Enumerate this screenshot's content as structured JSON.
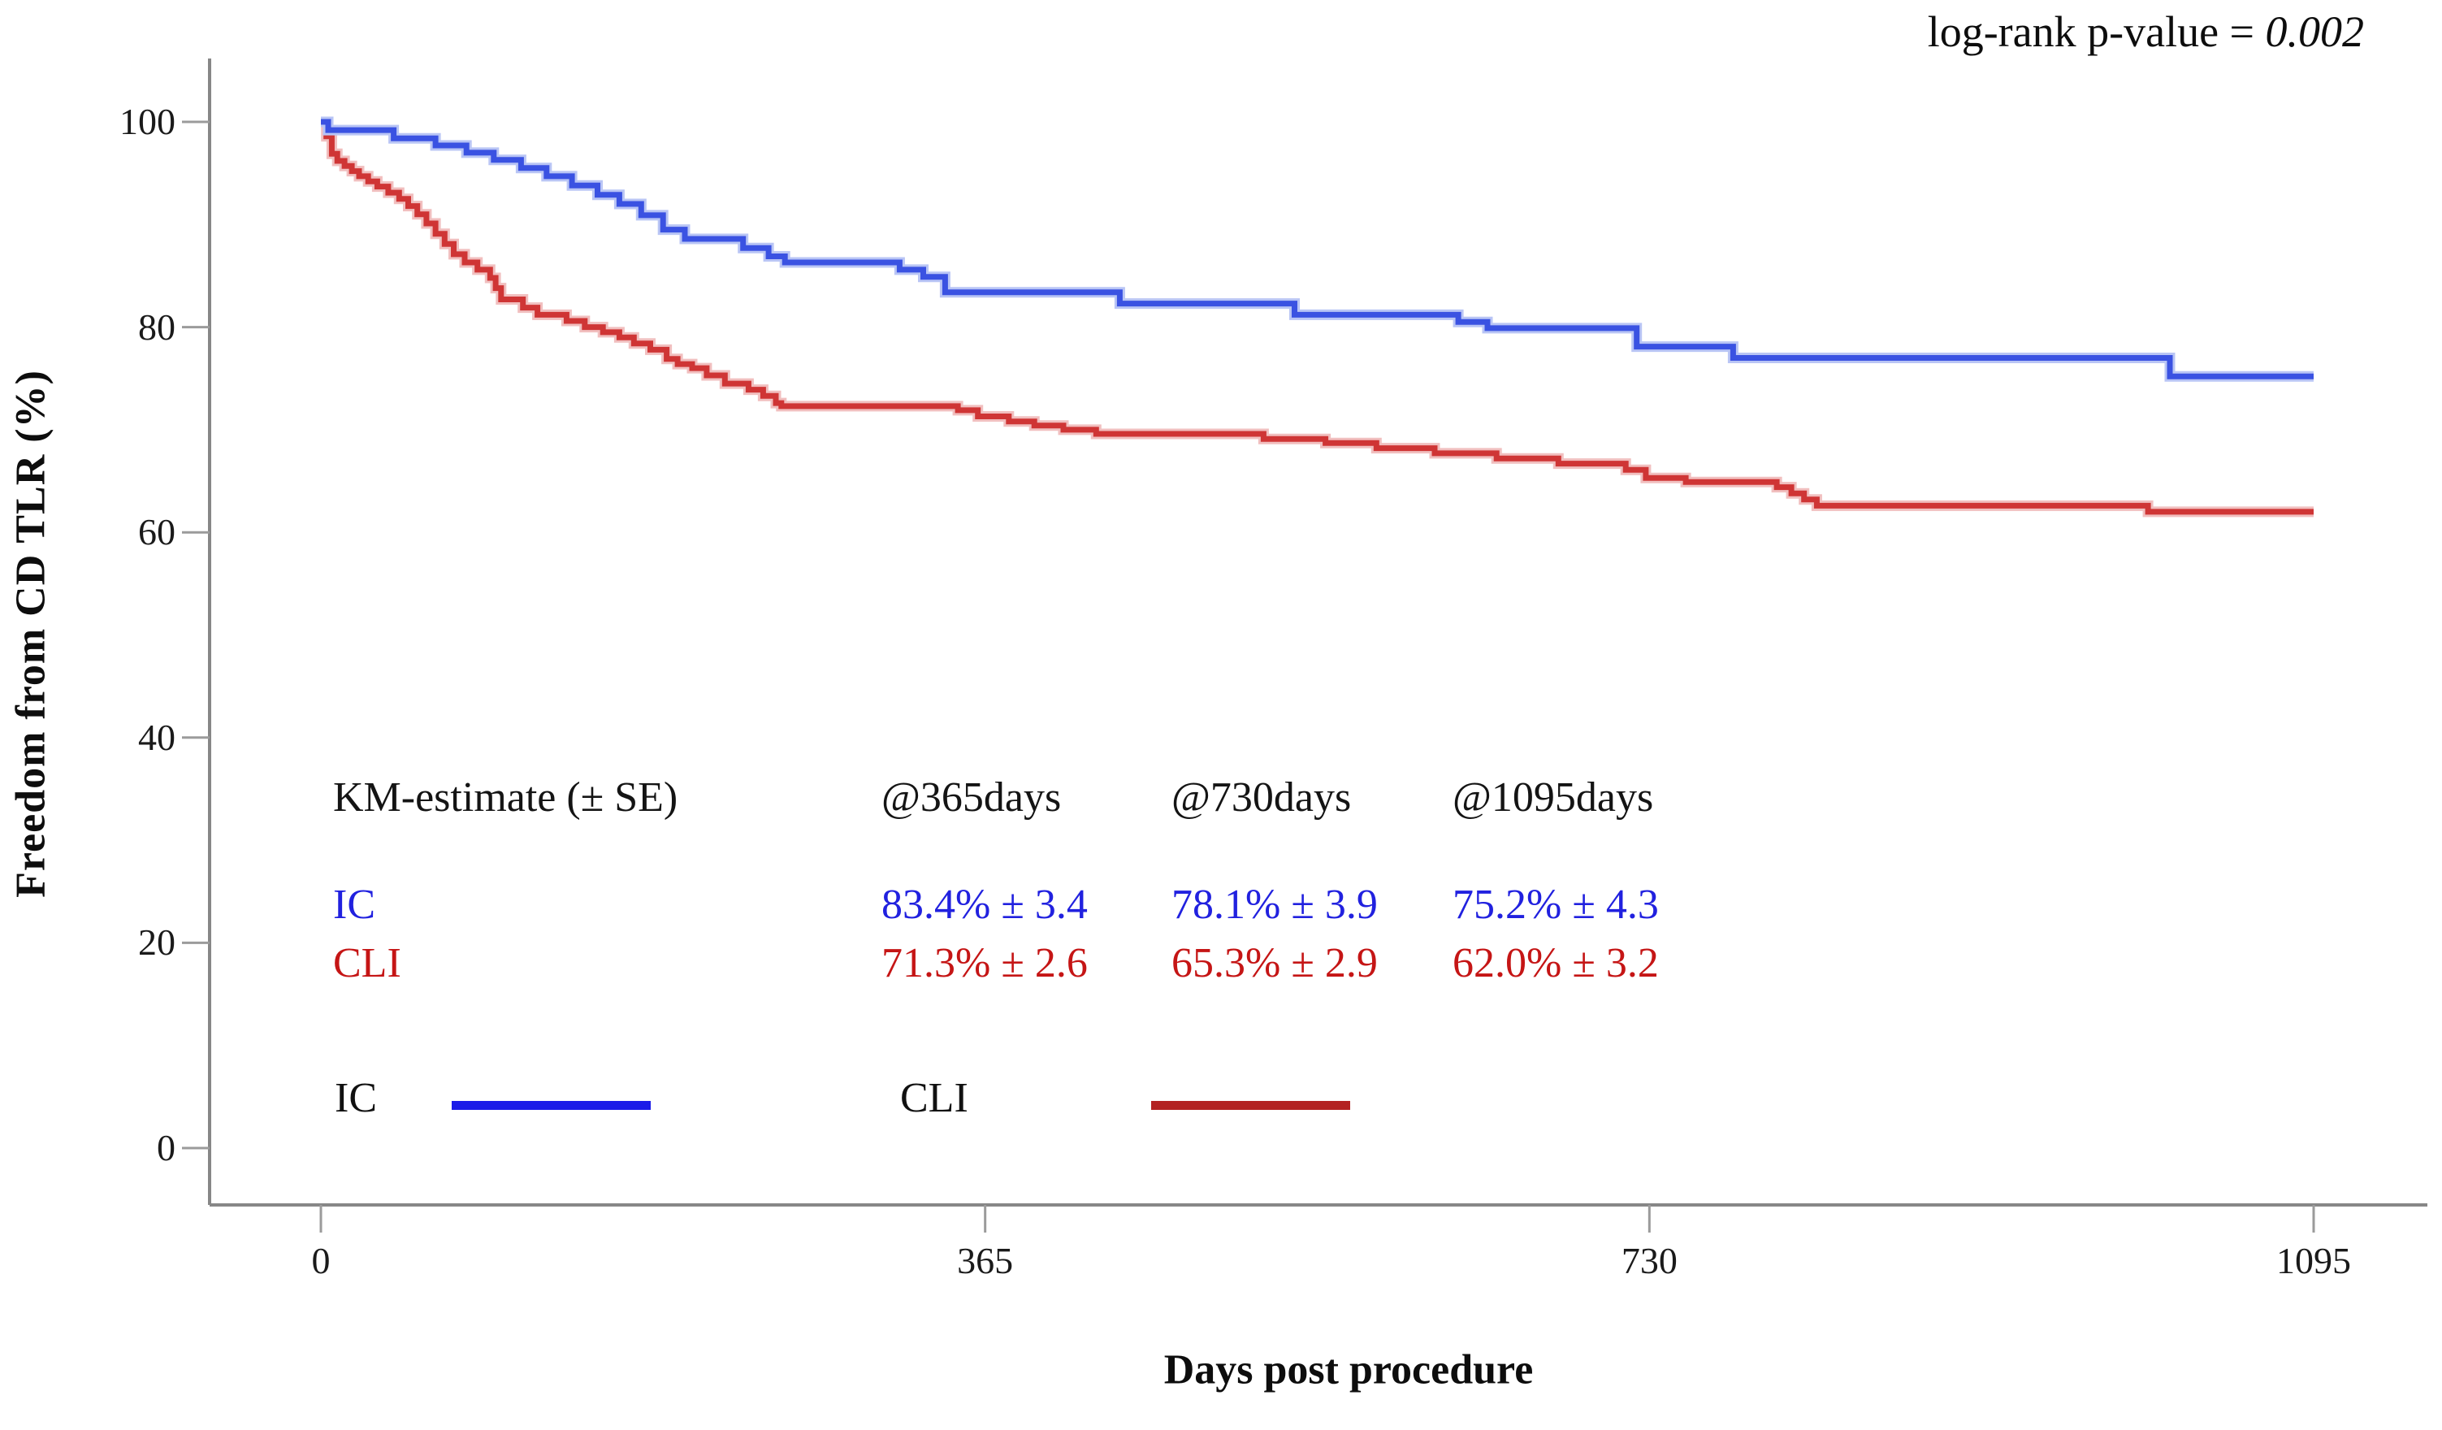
{
  "figure": {
    "p_value_prefix": "log-rank p-value = ",
    "p_value": "0.002"
  },
  "chart_data": {
    "type": "line",
    "subtype": "kaplan-meier-step",
    "title": "",
    "xlabel": "Days post procedure",
    "ylabel": "Freedom from CD TLR (%)",
    "xlim": [
      0,
      1095
    ],
    "ylim": [
      0,
      100
    ],
    "x_ticks": [
      0,
      365,
      730,
      1095
    ],
    "y_ticks": [
      0,
      20,
      40,
      60,
      80,
      100
    ],
    "grid": false,
    "legend_position": "inside-bottom-left",
    "annotation": "log-rank p-value = 0.002",
    "axis_color": "#878787",
    "tick_color": "#9b9b9b",
    "series": [
      {
        "name": "IC",
        "color": "#3a52e2",
        "halo": "#b9c5f5",
        "steps": [
          [
            0,
            100
          ],
          [
            4,
            99.2
          ],
          [
            40,
            98.4
          ],
          [
            63,
            97.7
          ],
          [
            80,
            97.0
          ],
          [
            95,
            96.3
          ],
          [
            110,
            95.5
          ],
          [
            124,
            94.7
          ],
          [
            138,
            93.8
          ],
          [
            152,
            92.9
          ],
          [
            164,
            92.0
          ],
          [
            176,
            90.9
          ],
          [
            188,
            89.5
          ],
          [
            200,
            88.6
          ],
          [
            232,
            87.7
          ],
          [
            246,
            86.9
          ],
          [
            255,
            86.3
          ],
          [
            318,
            85.6
          ],
          [
            331,
            84.9
          ],
          [
            343,
            83.4
          ],
          [
            439,
            82.3
          ],
          [
            535,
            81.2
          ],
          [
            625,
            80.5
          ],
          [
            641,
            79.9
          ],
          [
            723,
            78.1
          ],
          [
            776,
            77.0
          ],
          [
            1016,
            75.2
          ],
          [
            1095,
            75.2
          ]
        ]
      },
      {
        "name": "CLI",
        "color": "#cf3535",
        "halo": "#f1bfbf",
        "steps": [
          [
            0,
            100
          ],
          [
            3,
            98.6
          ],
          [
            6,
            96.9
          ],
          [
            9,
            96.2
          ],
          [
            13,
            95.7
          ],
          [
            17,
            95.2
          ],
          [
            21,
            94.7
          ],
          [
            26,
            94.2
          ],
          [
            31,
            93.7
          ],
          [
            37,
            93.1
          ],
          [
            43,
            92.5
          ],
          [
            48,
            91.8
          ],
          [
            53,
            91.0
          ],
          [
            58,
            90.1
          ],
          [
            63,
            89.1
          ],
          [
            68,
            88.1
          ],
          [
            73,
            87.1
          ],
          [
            79,
            86.3
          ],
          [
            86,
            85.6
          ],
          [
            93,
            84.8
          ],
          [
            96,
            83.8
          ],
          [
            99,
            82.7
          ],
          [
            111,
            81.9
          ],
          [
            119,
            81.2
          ],
          [
            135,
            80.6
          ],
          [
            145,
            80.0
          ],
          [
            155,
            79.5
          ],
          [
            164,
            79.0
          ],
          [
            172,
            78.4
          ],
          [
            181,
            77.8
          ],
          [
            190,
            76.9
          ],
          [
            196,
            76.4
          ],
          [
            204,
            76.0
          ],
          [
            212,
            75.3
          ],
          [
            222,
            74.5
          ],
          [
            235,
            73.9
          ],
          [
            243,
            73.3
          ],
          [
            250,
            72.6
          ],
          [
            253,
            72.3
          ],
          [
            350,
            71.9
          ],
          [
            361,
            71.3
          ],
          [
            378,
            70.8
          ],
          [
            392,
            70.4
          ],
          [
            408,
            70.0
          ],
          [
            426,
            69.6
          ],
          [
            518,
            69.1
          ],
          [
            552,
            68.7
          ],
          [
            580,
            68.2
          ],
          [
            612,
            67.7
          ],
          [
            646,
            67.2
          ],
          [
            680,
            66.7
          ],
          [
            717,
            66.1
          ],
          [
            728,
            65.3
          ],
          [
            750,
            64.9
          ],
          [
            800,
            64.4
          ],
          [
            808,
            63.8
          ],
          [
            815,
            63.2
          ],
          [
            822,
            62.6
          ],
          [
            1004,
            62.0
          ],
          [
            1095,
            62.0
          ]
        ]
      }
    ],
    "km_table": {
      "header": [
        "KM-estimate (± SE)",
        "@365days",
        "@730days",
        "@1095days"
      ],
      "rows": [
        {
          "label": "IC",
          "color": "#2121df",
          "values": [
            "83.4% ± 3.4",
            "78.1% ± 3.9",
            "75.2% ± 4.3"
          ]
        },
        {
          "label": "CLI",
          "color": "#c51515",
          "values": [
            "71.3% ± 2.6",
            "65.3% ± 2.9",
            "62.0% ± 3.2"
          ]
        }
      ]
    },
    "legend": [
      {
        "label": "IC",
        "color": "#1b1be8"
      },
      {
        "label": "CLI",
        "color": "#b32222"
      }
    ]
  }
}
